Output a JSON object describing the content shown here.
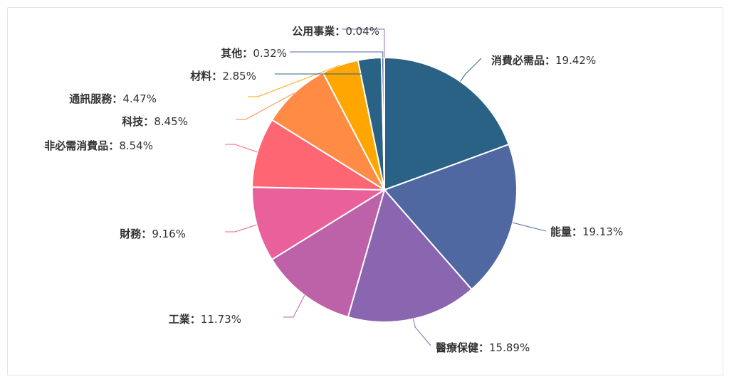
{
  "chart_data": {
    "type": "pie",
    "series": [
      {
        "name": "消費必需品",
        "value": 19.42,
        "label": "19.42%",
        "color": "#2a6286"
      },
      {
        "name": "能量",
        "value": 19.13,
        "label": "19.13%",
        "color": "#5068a2"
      },
      {
        "name": "醫療保健",
        "value": 15.89,
        "label": "15.89%",
        "color": "#8a66b0"
      },
      {
        "name": "工業",
        "value": 11.73,
        "label": "11.73%",
        "color": "#bd62a8"
      },
      {
        "name": "財務",
        "value": 9.16,
        "label": "9.16%",
        "color": "#e9609a"
      },
      {
        "name": "非必需消費品",
        "value": 8.54,
        "label": "8.54%",
        "color": "#fe6673"
      },
      {
        "name": "科技",
        "value": 8.45,
        "label": "8.45%",
        "color": "#ff8b44"
      },
      {
        "name": "通訊服務",
        "value": 4.47,
        "label": "4.47%",
        "color": "#ffa600"
      },
      {
        "name": "材料",
        "value": 2.85,
        "label": "2.85%",
        "color": "#2a6286"
      },
      {
        "name": "其他",
        "value": 0.32,
        "label": "0.32%",
        "color": "#5068a2"
      },
      {
        "name": "公用事業",
        "value": 0.04,
        "label": "0.04%",
        "color": "#8a66b0"
      }
    ],
    "separator": "："
  }
}
